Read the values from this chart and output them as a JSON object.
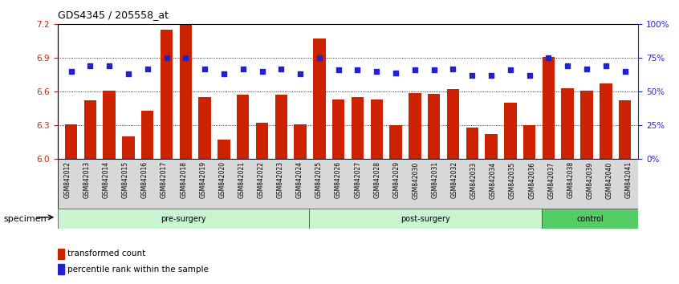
{
  "title": "GDS4345 / 205558_at",
  "categories": [
    "GSM842012",
    "GSM842013",
    "GSM842014",
    "GSM842015",
    "GSM842016",
    "GSM842017",
    "GSM842018",
    "GSM842019",
    "GSM842020",
    "GSM842021",
    "GSM842022",
    "GSM842023",
    "GSM842024",
    "GSM842025",
    "GSM842026",
    "GSM842027",
    "GSM842028",
    "GSM842029",
    "GSM842030",
    "GSM842031",
    "GSM842032",
    "GSM842033",
    "GSM842034",
    "GSM842035",
    "GSM842036",
    "GSM842037",
    "GSM842038",
    "GSM842039",
    "GSM842040",
    "GSM842041"
  ],
  "bar_values": [
    6.31,
    6.52,
    6.61,
    6.2,
    6.43,
    7.15,
    7.2,
    6.55,
    6.17,
    6.57,
    6.32,
    6.57,
    6.31,
    7.07,
    6.53,
    6.55,
    6.53,
    6.3,
    6.59,
    6.58,
    6.62,
    6.28,
    6.22,
    6.5,
    6.3,
    6.91,
    6.63,
    6.61,
    6.67,
    6.52
  ],
  "blue_pct": [
    65,
    69,
    69,
    63,
    67,
    75,
    75,
    67,
    63,
    67,
    65,
    67,
    63,
    75,
    66,
    66,
    65,
    64,
    66,
    66,
    67,
    62,
    62,
    66,
    62,
    75,
    69,
    67,
    69,
    65
  ],
  "groups": [
    {
      "label": "pre-surgery",
      "start": 0,
      "end": 13,
      "color": "#c8f5d0"
    },
    {
      "label": "post-surgery",
      "start": 13,
      "end": 25,
      "color": "#c8f5d0"
    },
    {
      "label": "control",
      "start": 25,
      "end": 30,
      "color": "#55cc66"
    }
  ],
  "ylim_left": [
    6.0,
    7.2
  ],
  "ylim_right": [
    0,
    100
  ],
  "yticks_left": [
    6.0,
    6.3,
    6.6,
    6.9,
    7.2
  ],
  "yticks_right": [
    0,
    25,
    50,
    75,
    100
  ],
  "ytick_labels_right": [
    "0%",
    "25%",
    "50%",
    "75%",
    "100%"
  ],
  "bar_color": "#CC2200",
  "dot_color": "#2222CC",
  "xlabel": "specimen",
  "legend_items": [
    "transformed count",
    "percentile rank within the sample"
  ],
  "title_fontsize": 9,
  "tick_fontsize": 6,
  "axis_fontsize": 7.5,
  "legend_fontsize": 7.5
}
